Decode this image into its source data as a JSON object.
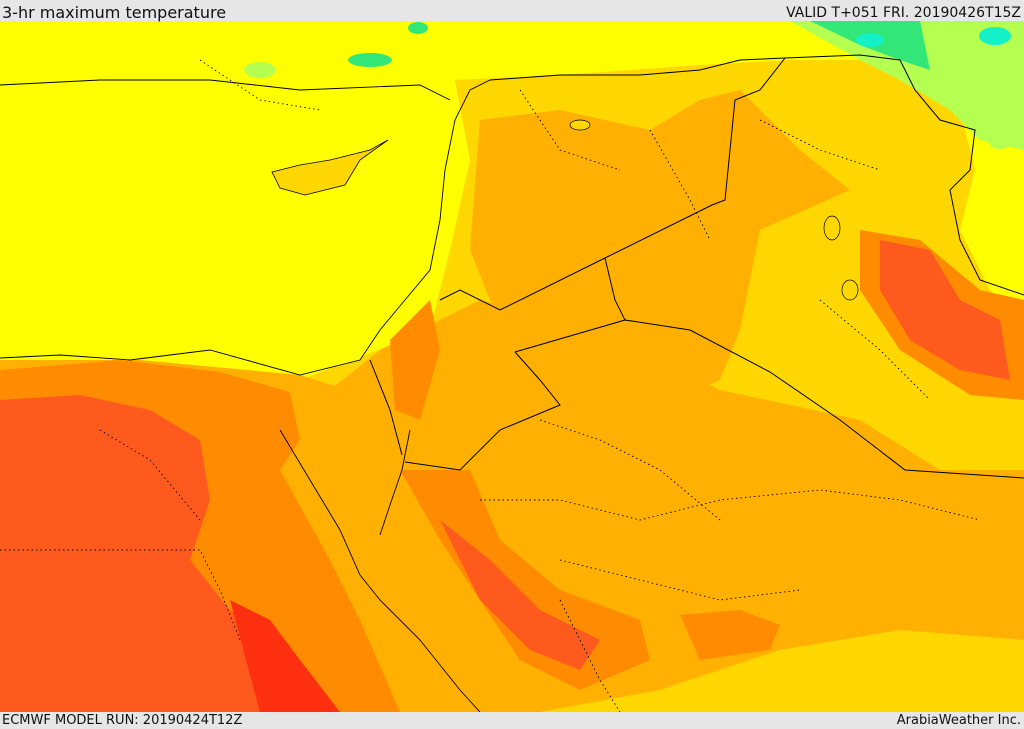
{
  "header": {
    "title": "3-hr maximum temperature",
    "valid": "VALID T+051 FRI. 20190426T15Z"
  },
  "footer": {
    "model_run": "ECMWF MODEL RUN: 20190424T12Z",
    "credit": "ArabiaWeather Inc."
  },
  "map": {
    "region": "Eastern Mediterranean and Middle East",
    "colors": {
      "yellow": "#ffff00",
      "light_orange": "#ffd700",
      "orange": "#ffb000",
      "dark_orange": "#ff8c00",
      "red_orange": "#ff5a1e",
      "red": "#ff3010",
      "light_green": "#b4ff50",
      "green": "#32e678",
      "cyan": "#14f0c8",
      "border": "#000000"
    }
  }
}
